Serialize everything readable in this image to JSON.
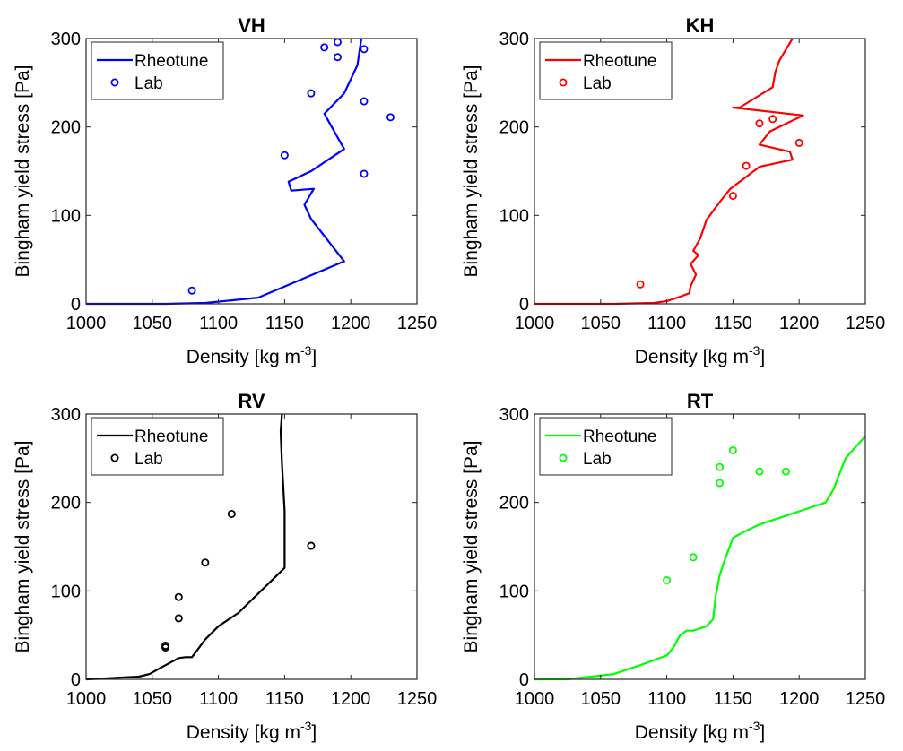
{
  "chart_data": [
    {
      "type": "line",
      "title": "VH",
      "xlabel": "Density [kg m",
      "xlabel_sup": "-3",
      "xlabel_end": "]",
      "ylabel": "Bingham yield stress [Pa]",
      "xlim": [
        1000,
        1250
      ],
      "ylim": [
        0,
        300
      ],
      "xticks": [
        1000,
        1050,
        1100,
        1150,
        1200,
        1250
      ],
      "yticks": [
        0,
        100,
        200,
        300
      ],
      "legend_position": "top-left",
      "color": "#0000ff",
      "series": [
        {
          "name": "Rheotune",
          "kind": "line",
          "x": [
            1000,
            1060,
            1090,
            1110,
            1130,
            1195,
            1170,
            1165,
            1172,
            1155,
            1153,
            1170,
            1195,
            1180,
            1195,
            1205,
            1208
          ],
          "y": [
            0,
            0,
            1,
            4,
            7,
            48,
            96,
            112,
            130,
            128,
            138,
            150,
            175,
            215,
            238,
            270,
            300
          ]
        },
        {
          "name": "Lab",
          "kind": "scatter",
          "x": [
            1080,
            1150,
            1170,
            1180,
            1190,
            1190,
            1210,
            1210,
            1210,
            1230
          ],
          "y": [
            15,
            168,
            238,
            290,
            296,
            279,
            288,
            229,
            147,
            211
          ]
        }
      ]
    },
    {
      "type": "line",
      "title": "KH",
      "xlabel": "Density [kg m",
      "xlabel_sup": "-3",
      "xlabel_end": "]",
      "ylabel": "Bingham yield stress [Pa]",
      "xlim": [
        1000,
        1250
      ],
      "ylim": [
        0,
        300
      ],
      "xticks": [
        1000,
        1050,
        1100,
        1150,
        1200,
        1250
      ],
      "yticks": [
        0,
        100,
        200,
        300
      ],
      "legend_position": "top-left",
      "color": "#ff0000",
      "series": [
        {
          "name": "Rheotune",
          "kind": "line",
          "x": [
            1000,
            1060,
            1090,
            1100,
            1110,
            1117,
            1118,
            1122,
            1118,
            1124,
            1120,
            1125,
            1130,
            1140,
            1148,
            1170,
            1195,
            1193,
            1170,
            1178,
            1203,
            1150,
            1155,
            1180,
            1182,
            1185,
            1195
          ],
          "y": [
            0,
            0,
            1,
            3,
            8,
            12,
            20,
            33,
            45,
            55,
            60,
            73,
            95,
            115,
            130,
            155,
            163,
            172,
            180,
            195,
            213,
            222,
            222,
            245,
            262,
            275,
            300
          ]
        },
        {
          "name": "Lab",
          "kind": "scatter",
          "x": [
            1080,
            1150,
            1160,
            1170,
            1180,
            1200
          ],
          "y": [
            22,
            122,
            156,
            204,
            209,
            182
          ]
        }
      ]
    },
    {
      "type": "line",
      "title": "RV",
      "xlabel": "Density [kg m",
      "xlabel_sup": "-3",
      "xlabel_end": "]",
      "ylabel": "Bingham yield stress [Pa]",
      "xlim": [
        1000,
        1250
      ],
      "ylim": [
        0,
        300
      ],
      "xticks": [
        1000,
        1050,
        1100,
        1150,
        1200,
        1250
      ],
      "yticks": [
        0,
        100,
        200,
        300
      ],
      "legend_position": "top-left",
      "color": "#000000",
      "series": [
        {
          "name": "Rheotune",
          "kind": "line",
          "x": [
            1000,
            1015,
            1040,
            1048,
            1055,
            1065,
            1070,
            1075,
            1080,
            1090,
            1100,
            1115,
            1150,
            1150,
            1148,
            1147,
            1148
          ],
          "y": [
            0,
            1,
            3,
            6,
            12,
            20,
            24,
            25,
            25,
            45,
            60,
            75,
            126,
            190,
            245,
            280,
            300
          ]
        },
        {
          "name": "Lab",
          "kind": "scatter",
          "x": [
            1060,
            1060,
            1070,
            1070,
            1090,
            1110,
            1170
          ],
          "y": [
            36,
            38,
            69,
            93,
            132,
            187,
            151
          ]
        }
      ]
    },
    {
      "type": "line",
      "title": "RT",
      "xlabel": "Density [kg m",
      "xlabel_sup": "-3",
      "xlabel_end": "]",
      "ylabel": "Bingham yield stress [Pa]",
      "xlim": [
        1000,
        1250
      ],
      "ylim": [
        0,
        300
      ],
      "xticks": [
        1000,
        1050,
        1100,
        1150,
        1200,
        1250
      ],
      "yticks": [
        0,
        100,
        200,
        300
      ],
      "legend_position": "top-left",
      "color": "#00ff00",
      "series": [
        {
          "name": "Rheotune",
          "kind": "line",
          "x": [
            1000,
            1025,
            1060,
            1080,
            1100,
            1105,
            1110,
            1115,
            1120,
            1130,
            1135,
            1137,
            1140,
            1145,
            1150,
            1160,
            1170,
            1220,
            1226,
            1235,
            1250
          ],
          "y": [
            0,
            0,
            6,
            16,
            27,
            36,
            50,
            55,
            55,
            60,
            68,
            95,
            118,
            140,
            160,
            168,
            175,
            200,
            215,
            250,
            275
          ]
        },
        {
          "name": "Lab",
          "kind": "scatter",
          "x": [
            1100,
            1120,
            1140,
            1140,
            1150,
            1170,
            1190
          ],
          "y": [
            112,
            138,
            222,
            240,
            259,
            235,
            235
          ]
        }
      ]
    }
  ]
}
